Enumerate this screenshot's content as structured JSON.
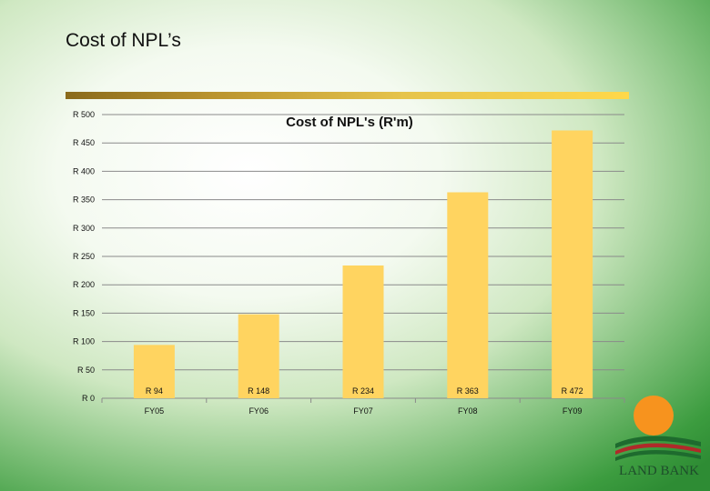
{
  "slide": {
    "title": "Cost of NPL’s"
  },
  "logo": {
    "text": "LAND BANK"
  },
  "colors": {
    "bar": "#ffd460",
    "rule_start": "#8a6a1c",
    "rule_end": "#ffd84a",
    "sun": "#f7931e",
    "logo_green": "#1e6b2e",
    "logo_red": "#b02a2a"
  },
  "chart_data": {
    "type": "bar",
    "title": "Cost of NPL's (R'm)",
    "xlabel": "",
    "ylabel": "",
    "categories": [
      "FY05",
      "FY06",
      "FY07",
      "FY08",
      "FY09"
    ],
    "values": [
      94,
      148,
      234,
      363,
      472
    ],
    "data_labels": [
      "R 94",
      "R 148",
      "R 234",
      "R 363",
      "R 472"
    ],
    "y_ticks": [
      0,
      50,
      100,
      150,
      200,
      250,
      300,
      350,
      400,
      450,
      500
    ],
    "y_tick_labels": [
      "R 0",
      "R 50",
      "R 100",
      "R 150",
      "R 200",
      "R 250",
      "R 300",
      "R 350",
      "R 400",
      "R 450",
      "R 500"
    ],
    "ylim": [
      0,
      500
    ],
    "grid": true,
    "legend": "none"
  }
}
